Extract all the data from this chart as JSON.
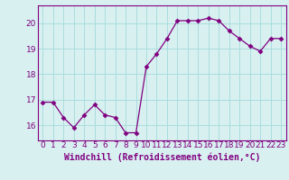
{
  "x": [
    0,
    1,
    2,
    3,
    4,
    5,
    6,
    7,
    8,
    9,
    10,
    11,
    12,
    13,
    14,
    15,
    16,
    17,
    18,
    19,
    20,
    21,
    22,
    23
  ],
  "y": [
    16.9,
    16.9,
    16.3,
    15.9,
    16.4,
    16.8,
    16.4,
    16.3,
    15.7,
    15.7,
    18.3,
    18.8,
    19.4,
    20.1,
    20.1,
    20.1,
    20.2,
    20.1,
    19.7,
    19.4,
    19.1,
    18.9,
    19.4,
    19.4
  ],
  "line_color": "#800080",
  "marker": "D",
  "marker_size": 2.5,
  "bg_color": "#d8f0f0",
  "grid_color": "#aadddd",
  "ylabel_ticks": [
    16,
    17,
    18,
    19,
    20
  ],
  "xlabel": "Windchill (Refroidissement éolien,°C)",
  "xlabel_fontsize": 7,
  "tick_fontsize": 6.5,
  "ylim": [
    15.4,
    20.7
  ],
  "xlim": [
    -0.5,
    23.5
  ]
}
